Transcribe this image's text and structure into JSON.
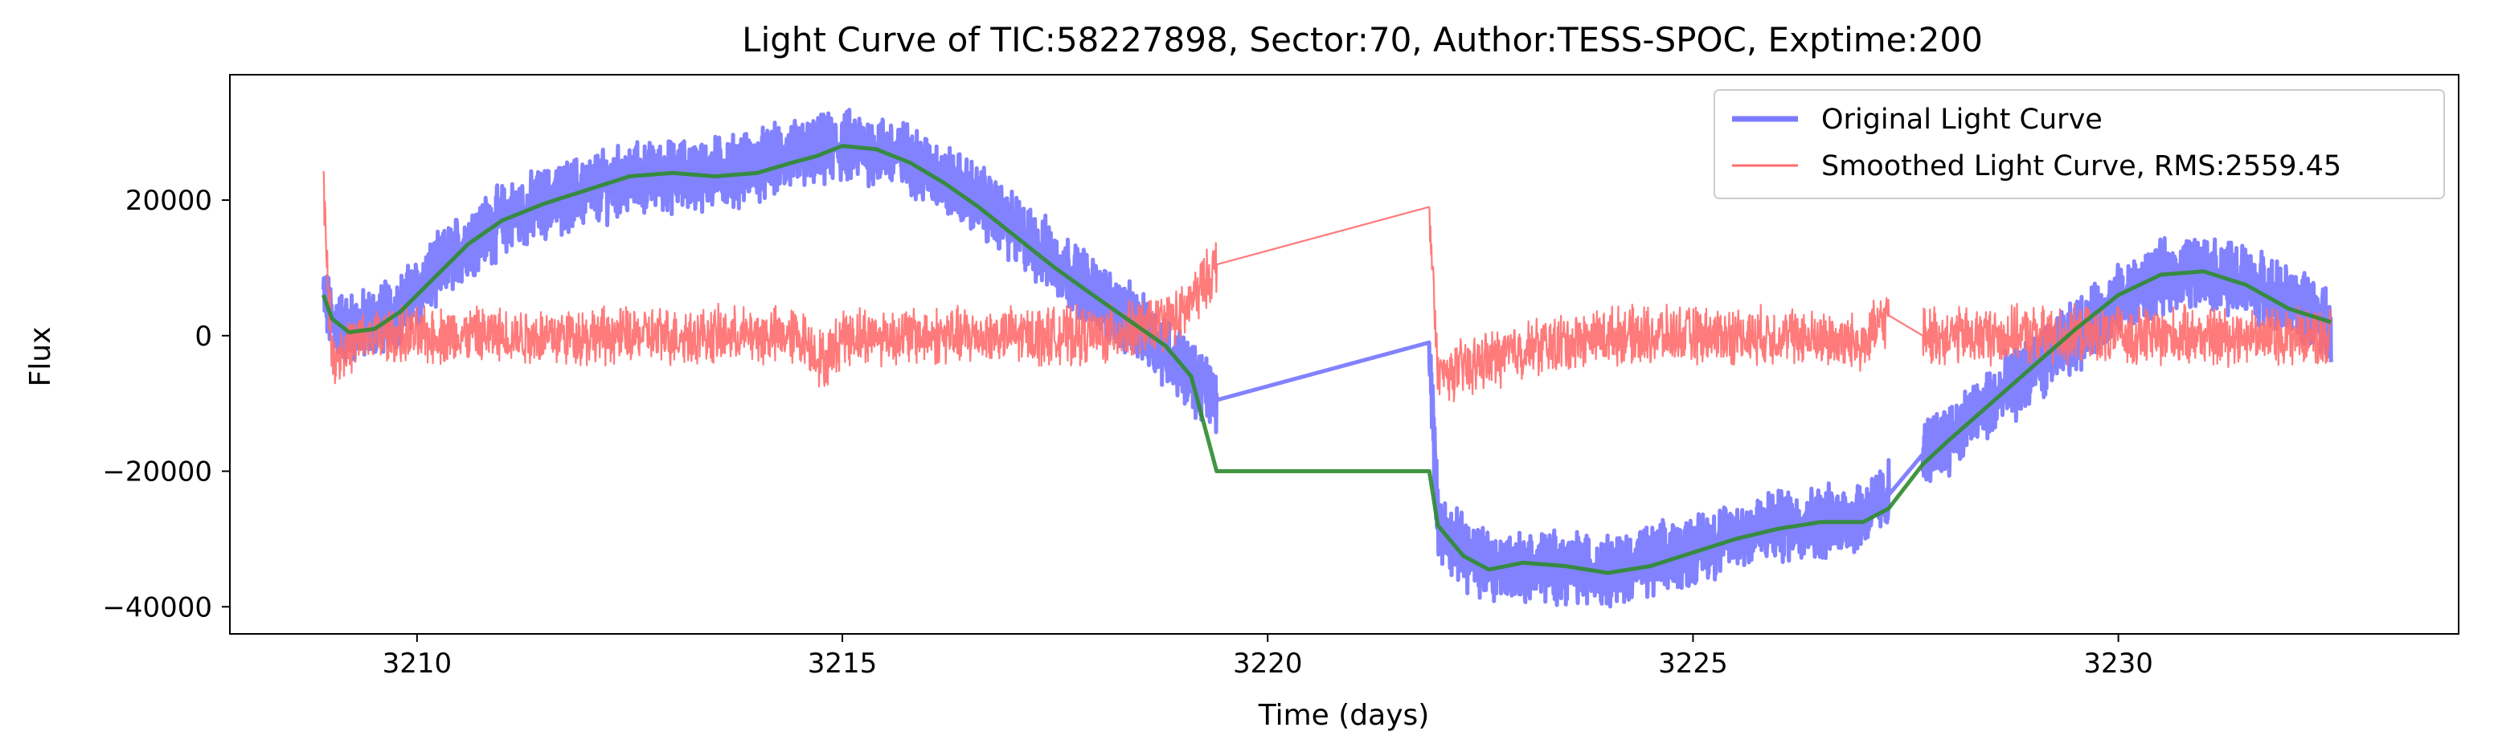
{
  "chart_data": {
    "type": "line",
    "title": "Light Curve of TIC:58227898, Sector:70, Author:TESS-SPOC, Exptime:200",
    "xlabel": "Time (days)",
    "ylabel": "Flux",
    "xlim": [
      3207.8,
      3234.0
    ],
    "ylim": [
      -44000,
      38500
    ],
    "xticks": [
      3210,
      3215,
      3220,
      3225,
      3230
    ],
    "xtick_labels": [
      "3210",
      "3215",
      "3220",
      "3225",
      "3230"
    ],
    "yticks": [
      -40000,
      -20000,
      0,
      20000
    ],
    "ytick_labels": [
      "−40000",
      "−20000",
      "0",
      "20000"
    ],
    "grid": false,
    "legend_position": "top-right",
    "gaps": [
      [
        3219.4,
        3221.9
      ],
      [
        3227.3,
        3227.7
      ]
    ],
    "series": [
      {
        "name": "Original Light Curve",
        "color": "#7b7bff",
        "style": "thick noisy band",
        "x": [
          3208.9,
          3209.0,
          3209.2,
          3209.5,
          3209.8,
          3210.2,
          3210.6,
          3211.0,
          3211.5,
          3212.0,
          3212.5,
          3213.0,
          3213.5,
          3214.0,
          3214.4,
          3214.7,
          3215.0,
          3215.4,
          3215.8,
          3216.2,
          3216.6,
          3217.0,
          3217.5,
          3218.0,
          3218.4,
          3218.8,
          3219.1,
          3219.4,
          3221.9,
          3222.0,
          3222.3,
          3222.6,
          3223.0,
          3223.5,
          3224.0,
          3224.5,
          3225.0,
          3225.5,
          3226.0,
          3226.5,
          3227.0,
          3227.3,
          3227.7,
          3228.0,
          3228.5,
          3229.0,
          3229.5,
          3230.0,
          3230.5,
          3231.0,
          3231.5,
          3232.0,
          3232.5
        ],
        "values": [
          6000,
          2000,
          1000,
          2000,
          4000,
          9000,
          14000,
          17000,
          19500,
          21500,
          23000,
          23500,
          24000,
          25000,
          26500,
          27000,
          28000,
          27500,
          26000,
          23000,
          20000,
          16000,
          11000,
          6000,
          2000,
          -2000,
          -6000,
          -9500,
          -1000,
          -28000,
          -32000,
          -34000,
          -34000,
          -34000,
          -34500,
          -33500,
          -31500,
          -29500,
          -28000,
          -27500,
          -26500,
          -23500,
          -17500,
          -15000,
          -10000,
          -5000,
          0,
          5000,
          8500,
          9500,
          8000,
          5000,
          2000
        ]
      },
      {
        "name": "Smoothed Light Curve, RMS:2559.45",
        "color": "#ff6b6b",
        "style": "thin noisy line",
        "x": [
          3208.9,
          3209.0,
          3209.5,
          3210.0,
          3211.0,
          3212.0,
          3213.0,
          3214.0,
          3214.5,
          3214.8,
          3215.0,
          3216.0,
          3217.0,
          3218.0,
          3218.5,
          3219.0,
          3219.4,
          3221.9,
          3222.0,
          3223.0,
          3224.0,
          3225.0,
          3226.0,
          3227.0,
          3227.3,
          3227.7,
          3228.0,
          3229.0,
          3230.0,
          3231.0,
          3232.0,
          3232.5
        ],
        "values": [
          22000,
          -3000,
          0,
          0,
          0,
          0,
          0,
          0,
          0,
          -4000,
          0,
          0,
          0,
          0,
          1000,
          3000,
          10500,
          19000,
          -6000,
          -2000,
          0,
          0,
          0,
          -1000,
          3000,
          0,
          0,
          0,
          0,
          0,
          0,
          0
        ]
      },
      {
        "color": "#2e8b2e",
        "style": "smooth trend",
        "x": [
          3208.9,
          3209.0,
          3209.2,
          3209.5,
          3209.8,
          3210.2,
          3210.6,
          3211.0,
          3211.5,
          3212.0,
          3212.5,
          3213.0,
          3213.5,
          3214.0,
          3214.4,
          3214.7,
          3215.0,
          3215.4,
          3215.8,
          3216.2,
          3216.6,
          3217.0,
          3217.5,
          3218.0,
          3218.4,
          3218.8,
          3219.1,
          3219.4,
          3221.9,
          3222.0,
          3222.3,
          3222.6,
          3223.0,
          3223.5,
          3224.0,
          3224.5,
          3225.0,
          3225.5,
          3226.0,
          3226.5,
          3227.0,
          3227.3,
          3227.7,
          3228.0,
          3228.5,
          3229.0,
          3229.5,
          3230.0,
          3230.5,
          3231.0,
          3231.5,
          3232.0,
          3232.5
        ],
        "values": [
          6000,
          2500,
          500,
          1000,
          3500,
          8500,
          13500,
          17000,
          19500,
          21500,
          23500,
          24000,
          23500,
          24000,
          25500,
          26500,
          28000,
          27500,
          25500,
          22500,
          19000,
          15000,
          10000,
          5500,
          2000,
          -1500,
          -6000,
          -20000,
          -20000,
          -28000,
          -32500,
          -34500,
          -33500,
          -34000,
          -35000,
          -34000,
          -32000,
          -30000,
          -28500,
          -27500,
          -27500,
          -25500,
          -19000,
          -15500,
          -10000,
          -4500,
          1000,
          6000,
          9000,
          9500,
          7500,
          4000,
          2000
        ]
      }
    ],
    "legend": [
      {
        "label": "Original Light Curve",
        "color": "#7b7bff"
      },
      {
        "label": "Smoothed Light Curve, RMS:2559.45",
        "color": "#ff6b6b"
      }
    ]
  }
}
